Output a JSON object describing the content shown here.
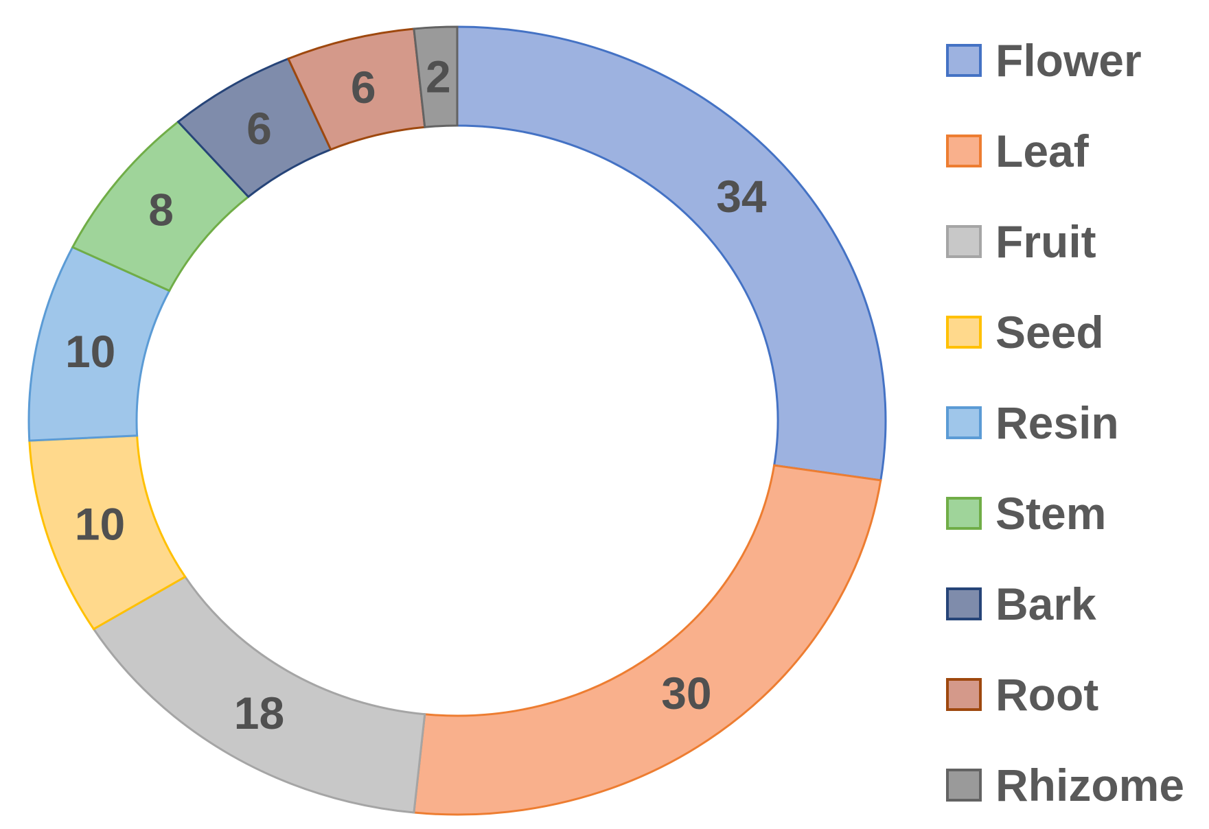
{
  "chart_data": {
    "type": "pie",
    "variant": "donut",
    "title": "",
    "start_angle": "top, clockwise",
    "legend_position": "right",
    "categories": [
      "Flower",
      "Leaf",
      "Fruit",
      "Seed",
      "Resin",
      "Stem",
      "Bark",
      "Root",
      "Rhizome"
    ],
    "values": [
      34,
      30,
      18,
      10,
      10,
      8,
      6,
      6,
      2
    ],
    "data_labels": [
      "34",
      "30",
      "18",
      "10",
      "10",
      "8",
      "6",
      "6",
      "2"
    ],
    "colors": {
      "fills": [
        "#9db2e0",
        "#f9b08c",
        "#c8c8c8",
        "#ffd98c",
        "#9fc6ea",
        "#9fd49a",
        "#7f8cab",
        "#d4998a",
        "#9a9a9a"
      ],
      "borders": [
        "#4472c4",
        "#ed7d31",
        "#a5a5a5",
        "#ffc000",
        "#5b9bd5",
        "#70ad47",
        "#264478",
        "#9e480e",
        "#636363"
      ]
    }
  }
}
